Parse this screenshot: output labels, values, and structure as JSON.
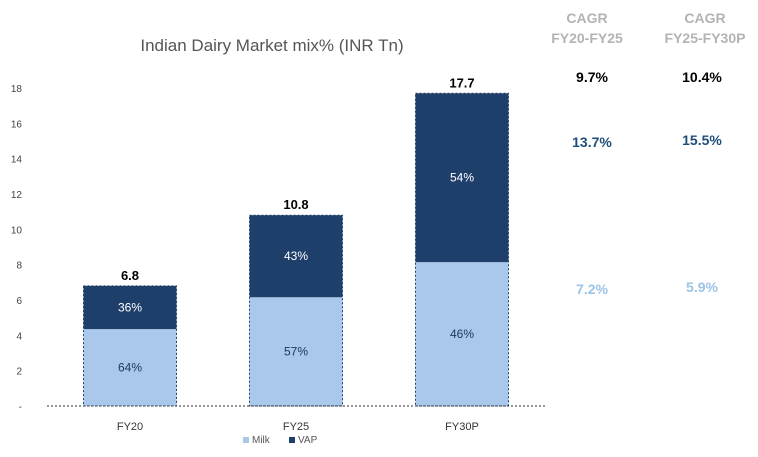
{
  "chart_data": {
    "type": "bar",
    "stacked": true,
    "title": "Indian Dairy Market mix% (INR Tn)",
    "categories": [
      "FY20",
      "FY25",
      "FY30P"
    ],
    "totals": [
      6.8,
      10.8,
      17.7
    ],
    "total_labels": [
      "6.8",
      "10.8",
      "17.7"
    ],
    "series": [
      {
        "name": "Milk",
        "color": "#a9c8ec",
        "label_color": "#1f3864",
        "share_pct": [
          64,
          57,
          46
        ],
        "labels": [
          "64%",
          "57%",
          "46%"
        ]
      },
      {
        "name": "VAP",
        "color": "#1f3f6b",
        "label_color": "#ffffff",
        "share_pct": [
          36,
          43,
          54
        ],
        "labels": [
          "36%",
          "43%",
          "54%"
        ]
      }
    ],
    "ylim": [
      0,
      18
    ],
    "yticks": [
      0,
      2,
      4,
      6,
      8,
      10,
      12,
      14,
      16,
      18
    ],
    "ytick_labels": [
      "-",
      "2",
      "4",
      "6",
      "8",
      "10",
      "12",
      "14",
      "16",
      "18"
    ],
    "legend": {
      "placement": "bottom",
      "entries": [
        "Milk",
        "VAP"
      ]
    },
    "grid": false
  },
  "cagr_table": {
    "columns": [
      {
        "header_line1": "CAGR",
        "header_line2": "FY20-FY25",
        "total": "9.7%",
        "vap": "13.7%",
        "milk": "7.2%"
      },
      {
        "header_line1": "CAGR",
        "header_line2": "FY25-FY30P",
        "total": "10.4%",
        "vap": "15.5%",
        "milk": "5.9%"
      }
    ],
    "colors": {
      "total": "#000000",
      "vap": "#1f4e79",
      "milk": "#9dc3e6"
    }
  }
}
